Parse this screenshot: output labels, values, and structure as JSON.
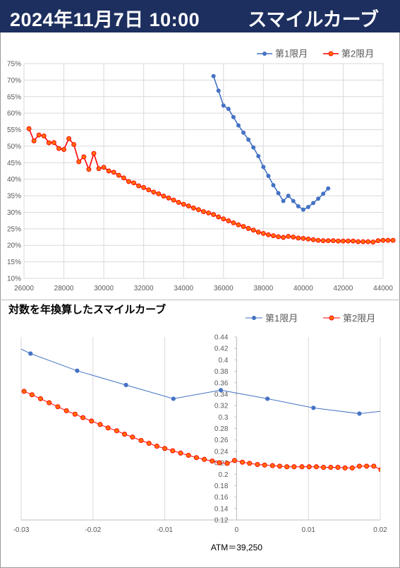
{
  "header": {
    "date": "2024年11月7日 10:00",
    "title": "スマイルカーブ"
  },
  "colors": {
    "header_bg": "#1d2f5f",
    "series1": "#4472c4",
    "series2": "#ff0000",
    "series2_fill": "#ff6b00"
  },
  "chart_data": [
    {
      "type": "line",
      "title": "",
      "xlabel": "",
      "ylabel": "",
      "xlim": [
        26000,
        44000
      ],
      "ylim": [
        10,
        75
      ],
      "y_format": "percent",
      "grid": true,
      "legend_position": "top-right",
      "x_ticks": [
        "26000",
        "28000",
        "30000",
        "32000",
        "34000",
        "36000",
        "38000",
        "40000",
        "42000",
        "44000"
      ],
      "y_ticks": [
        "10%",
        "15%",
        "20%",
        "25%",
        "30%",
        "35%",
        "40%",
        "45%",
        "50%",
        "55%",
        "60%",
        "65%",
        "70%",
        "75%"
      ],
      "series": [
        {
          "name": "第1限月",
          "color": "#4472c4",
          "points": [
            [
              35500,
              71.2
            ],
            [
              35750,
              66.8
            ],
            [
              36000,
              62.3
            ],
            [
              36250,
              61.3
            ],
            [
              36500,
              58.8
            ],
            [
              36750,
              56.3
            ],
            [
              37000,
              54.1
            ],
            [
              37250,
              52.0
            ],
            [
              37500,
              49.6
            ],
            [
              37750,
              47.0
            ],
            [
              38000,
              43.7
            ],
            [
              38250,
              41.0
            ],
            [
              38500,
              38.2
            ],
            [
              38750,
              35.8
            ],
            [
              39000,
              33.4
            ],
            [
              39250,
              35.0
            ],
            [
              39500,
              33.4
            ],
            [
              39750,
              31.8
            ],
            [
              40000,
              30.8
            ],
            [
              40250,
              31.6
            ],
            [
              40500,
              32.8
            ],
            [
              40750,
              34.1
            ],
            [
              41000,
              35.6
            ],
            [
              41250,
              37.2
            ]
          ]
        },
        {
          "name": "第2限月",
          "color": "#ff0000",
          "points": [
            [
              26250,
              55.3
            ],
            [
              26500,
              51.6
            ],
            [
              26750,
              53.4
            ],
            [
              27000,
              53.1
            ],
            [
              27250,
              51.0
            ],
            [
              27500,
              51.1
            ],
            [
              27750,
              49.3
            ],
            [
              28000,
              49.0
            ],
            [
              28250,
              52.3
            ],
            [
              28500,
              50.5
            ],
            [
              28750,
              45.3
            ],
            [
              29000,
              46.8
            ],
            [
              29250,
              43.0
            ],
            [
              29500,
              47.8
            ],
            [
              29750,
              43.2
            ],
            [
              30000,
              43.6
            ],
            [
              30250,
              42.5
            ],
            [
              30500,
              42.1
            ],
            [
              30750,
              41.2
            ],
            [
              31000,
              40.4
            ],
            [
              31250,
              39.3
            ],
            [
              31500,
              38.9
            ],
            [
              31750,
              38.0
            ],
            [
              32000,
              37.5
            ],
            [
              32250,
              36.8
            ],
            [
              32500,
              36.1
            ],
            [
              32750,
              35.6
            ],
            [
              33000,
              34.9
            ],
            [
              33250,
              34.3
            ],
            [
              33500,
              33.7
            ],
            [
              33750,
              33.0
            ],
            [
              34000,
              32.4
            ],
            [
              34250,
              31.9
            ],
            [
              34500,
              31.3
            ],
            [
              34750,
              30.8
            ],
            [
              35000,
              30.2
            ],
            [
              35250,
              29.8
            ],
            [
              35500,
              29.3
            ],
            [
              35750,
              28.6
            ],
            [
              36000,
              28.0
            ],
            [
              36250,
              27.4
            ],
            [
              36500,
              26.8
            ],
            [
              36750,
              26.2
            ],
            [
              37000,
              25.7
            ],
            [
              37250,
              25.1
            ],
            [
              37500,
              24.6
            ],
            [
              37750,
              24.0
            ],
            [
              38000,
              23.6
            ],
            [
              38250,
              23.2
            ],
            [
              38500,
              22.9
            ],
            [
              38750,
              22.6
            ],
            [
              39000,
              22.4
            ],
            [
              39250,
              22.7
            ],
            [
              39500,
              22.5
            ],
            [
              39750,
              22.2
            ],
            [
              40000,
              22.1
            ],
            [
              40250,
              21.9
            ],
            [
              40500,
              21.7
            ],
            [
              40750,
              21.5
            ],
            [
              41000,
              21.4
            ],
            [
              41250,
              21.4
            ],
            [
              41500,
              21.4
            ],
            [
              41750,
              21.3
            ],
            [
              42000,
              21.3
            ],
            [
              42250,
              21.3
            ],
            [
              42500,
              21.3
            ],
            [
              42750,
              21.1
            ],
            [
              43000,
              21.1
            ],
            [
              43250,
              21.1
            ],
            [
              43500,
              21.0
            ],
            [
              43750,
              21.4
            ],
            [
              44000,
              21.5
            ],
            [
              44250,
              21.5
            ],
            [
              44500,
              21.5
            ]
          ]
        }
      ]
    },
    {
      "type": "line",
      "title": "対数を年換算したスマイルカーブ",
      "xlabel": "",
      "ylabel": "",
      "xlim": [
        -0.03,
        0.02
      ],
      "ylim": [
        0.12,
        0.44
      ],
      "grid": true,
      "legend_position": "top-right",
      "x_ticks": [
        "-0.03",
        "-0.02",
        "-0.01",
        "0",
        "0.01",
        "0.02"
      ],
      "y_ticks": [
        "0.12",
        "0.14",
        "0.16",
        "0.18",
        "0.2",
        "0.22",
        "0.24",
        "0.26",
        "0.28",
        "0.3",
        "0.32",
        "0.34",
        "0.36",
        "0.38",
        "0.4",
        "0.42",
        "0.44"
      ],
      "annotation": "ATM＝39,250",
      "series": [
        {
          "name": "第1限月",
          "color": "#4472c4",
          "points": [
            [
              -0.0315,
              0.428
            ],
            [
              -0.0287,
              0.411
            ],
            [
              -0.0222,
              0.381
            ],
            [
              -0.0154,
              0.356
            ],
            [
              -0.0088,
              0.332
            ],
            [
              -0.0022,
              0.347
            ],
            [
              0.0043,
              0.332
            ],
            [
              0.0107,
              0.316
            ],
            [
              0.0171,
              0.306
            ],
            [
              0.023,
              0.314
            ]
          ]
        },
        {
          "name": "第2限月",
          "color": "#ff0000",
          "points": [
            [
              -0.0296,
              0.345
            ],
            [
              -0.0285,
              0.339
            ],
            [
              -0.0273,
              0.332
            ],
            [
              -0.0261,
              0.325
            ],
            [
              -0.0249,
              0.318
            ],
            [
              -0.0237,
              0.311
            ],
            [
              -0.0225,
              0.305
            ],
            [
              -0.0214,
              0.299
            ],
            [
              -0.0202,
              0.293
            ],
            [
              -0.019,
              0.287
            ],
            [
              -0.0179,
              0.281
            ],
            [
              -0.0167,
              0.276
            ],
            [
              -0.0156,
              0.27
            ],
            [
              -0.0145,
              0.265
            ],
            [
              -0.0133,
              0.259
            ],
            [
              -0.0122,
              0.254
            ],
            [
              -0.0111,
              0.249
            ],
            [
              -0.01,
              0.245
            ],
            [
              -0.0089,
              0.241
            ],
            [
              -0.0078,
              0.237
            ],
            [
              -0.0067,
              0.233
            ],
            [
              -0.0056,
              0.229
            ],
            [
              -0.0045,
              0.226
            ],
            [
              -0.0034,
              0.223
            ],
            [
              -0.0024,
              0.22
            ],
            [
              -0.0013,
              0.219
            ],
            [
              -0.0003,
              0.224
            ],
            [
              0.0008,
              0.221
            ],
            [
              0.0018,
              0.219
            ],
            [
              0.0029,
              0.217
            ],
            [
              0.0039,
              0.216
            ],
            [
              0.005,
              0.215
            ],
            [
              0.006,
              0.214
            ],
            [
              0.007,
              0.213
            ],
            [
              0.008,
              0.213
            ],
            [
              0.0091,
              0.213
            ],
            [
              0.0101,
              0.213
            ],
            [
              0.0111,
              0.213
            ],
            [
              0.0121,
              0.212
            ],
            [
              0.0131,
              0.212
            ],
            [
              0.0141,
              0.212
            ],
            [
              0.0151,
              0.211
            ],
            [
              0.0161,
              0.211
            ],
            [
              0.0171,
              0.214
            ],
            [
              0.0181,
              0.214
            ],
            [
              0.0191,
              0.214
            ],
            [
              0.0201,
              0.208
            ]
          ]
        }
      ]
    }
  ]
}
